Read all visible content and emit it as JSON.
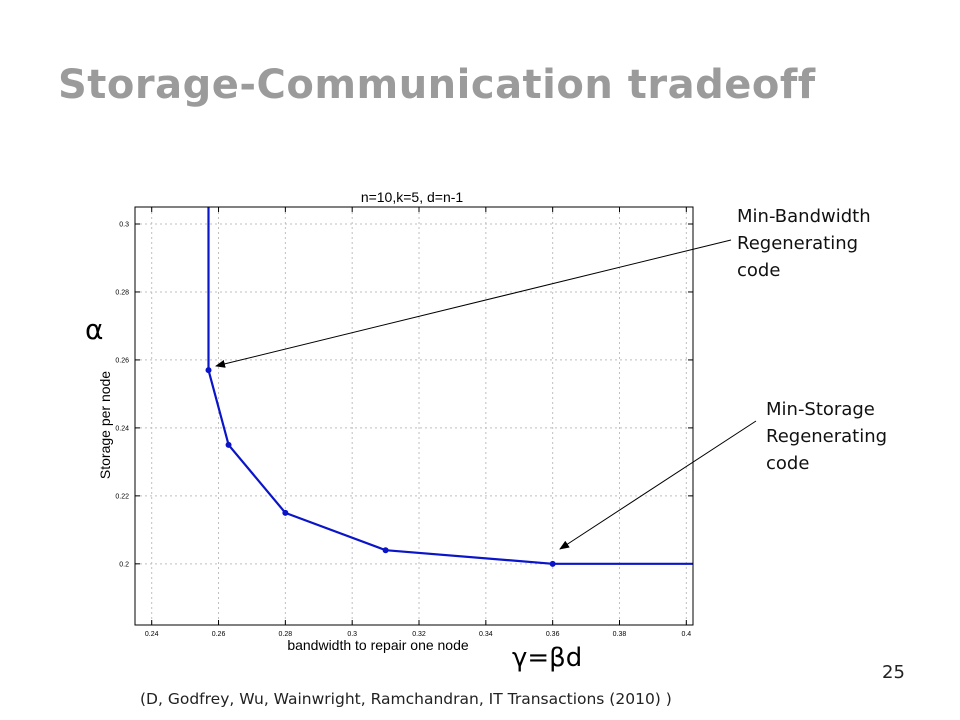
{
  "slide": {
    "title": "Storage-Communication tradeoff",
    "page_number": "25",
    "citation": "(D, Godfrey, Wu, Wainwright, Ramchandran, IT Transactions (2010) )"
  },
  "annotations": {
    "min_bandwidth": "Min-Bandwidth\nRegenerating\ncode",
    "min_storage": "Min-Storage\nRegenerating\ncode",
    "alpha": "α",
    "gamma": "γ=βd"
  },
  "colors": {
    "title": "#9b9b9b",
    "series": "#0a14c8",
    "grid": "#bfbfbf"
  },
  "chart_data": {
    "type": "line",
    "title": "n=10,k=5, d=n-1",
    "xlabel": "bandwidth to repair one node",
    "ylabel": "Storage per node",
    "xlim": [
      0.235,
      0.402
    ],
    "ylim": [
      0.182,
      0.305
    ],
    "xticks": [
      "0.24",
      "0.26",
      "0.28",
      "0.3",
      "0.32",
      "0.34",
      "0.36",
      "0.38",
      "0.4"
    ],
    "yticks": [
      "0.2",
      "0.22",
      "0.24",
      "0.26",
      "0.28",
      "0.3"
    ],
    "grid": true,
    "series": [
      {
        "x": [
          0.257,
          0.257,
          0.263,
          0.28,
          0.31,
          0.36,
          0.402
        ],
        "y": [
          0.305,
          0.257,
          0.235,
          0.215,
          0.204,
          0.2,
          0.2
        ],
        "markers": [
          {
            "x": 0.257,
            "y": 0.257
          },
          {
            "x": 0.263,
            "y": 0.235
          },
          {
            "x": 0.28,
            "y": 0.215
          },
          {
            "x": 0.31,
            "y": 0.204
          },
          {
            "x": 0.36,
            "y": 0.2
          }
        ]
      }
    ]
  }
}
